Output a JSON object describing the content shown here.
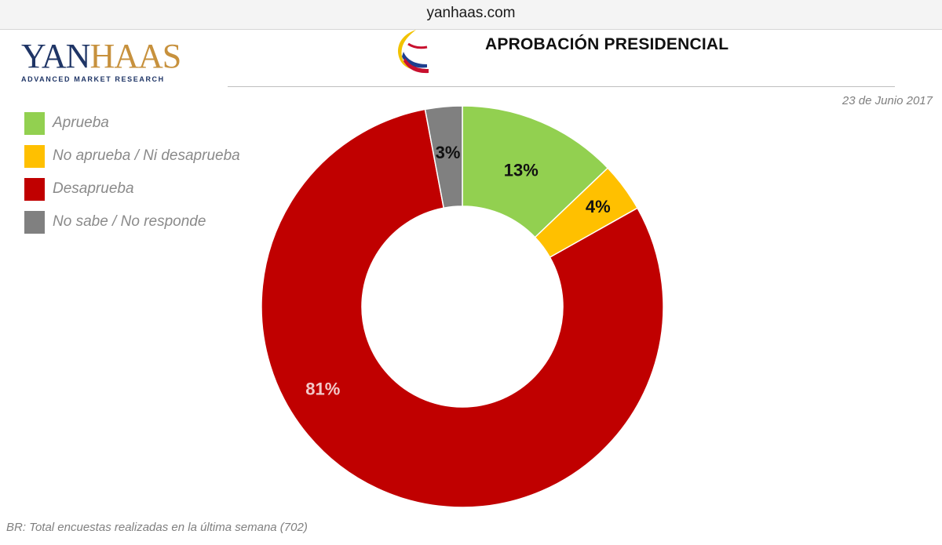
{
  "browser": {
    "url": "yanhaas.com"
  },
  "header": {
    "logo_main_a": "YAN",
    "logo_main_b": "HAAS",
    "logo_sub": "ADVANCED MARKET RESEARCH",
    "title": "APROBACIÓN PRESIDENCIAL",
    "date": "23 de Junio 2017"
  },
  "footer": {
    "note": "BR: Total encuestas realizadas en la última semana (702)"
  },
  "colors": {
    "aprueba": "#92d050",
    "neutral": "#ffc000",
    "desaprueba": "#c00000",
    "nsnr": "#808080"
  },
  "chart_data": {
    "type": "pie",
    "variant": "donut",
    "title": "APROBACIÓN PRESIDENCIAL",
    "categories": [
      "Aprueba",
      "No aprueba / Ni desaprueba",
      "Desaprueba",
      "No sabe /  No responde"
    ],
    "values": [
      13,
      4,
      81,
      3
    ],
    "labels": [
      "13%",
      "4%",
      "81%",
      "3%"
    ],
    "colors": [
      "#92d050",
      "#ffc000",
      "#c00000",
      "#808080"
    ],
    "label_colors": [
      "#111111",
      "#111111",
      "#f2c9c9",
      "#111111"
    ],
    "legend": "top-left"
  }
}
